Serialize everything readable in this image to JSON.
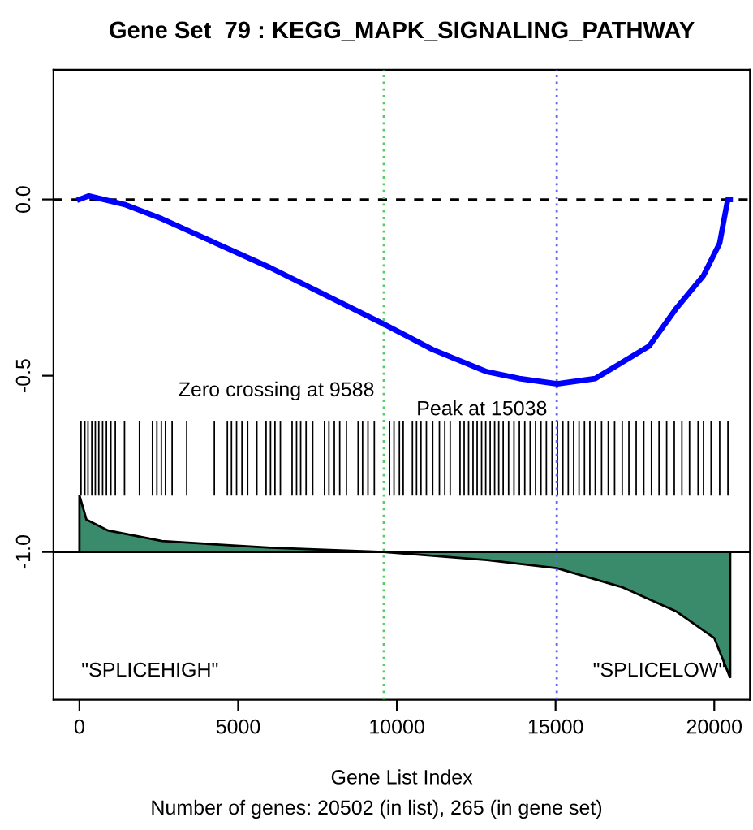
{
  "chart_data": {
    "type": "line",
    "title": "Gene Set  79 : KEGG_MAPK_SIGNALING_PATHWAY",
    "xlabel": "Gene List Index",
    "xlim": [
      -818,
      21125
    ],
    "xticks": [
      0,
      5000,
      10000,
      15000,
      20000
    ],
    "ylim": [
      -1.419,
      0.368
    ],
    "yticks": [
      {
        "value": 0,
        "label": "0.0"
      },
      {
        "value": -0.5,
        "label": "-0.5"
      },
      {
        "value": -1.0,
        "label": "-1.0"
      }
    ],
    "grid": false,
    "legend": false,
    "series": [
      {
        "color": "#0000ff",
        "x": [
          0,
          300,
          1415,
          2600,
          4300,
          6000,
          7720,
          9600,
          11130,
          12840,
          13860,
          15050,
          16250,
          17100,
          17950,
          18810,
          19660,
          20170,
          20425,
          20502
        ],
        "values": [
          0,
          0.01,
          -0.014,
          -0.055,
          -0.124,
          -0.193,
          -0.27,
          -0.354,
          -0.426,
          -0.489,
          -0.508,
          -0.523,
          -0.508,
          -0.462,
          -0.416,
          -0.308,
          -0.216,
          -0.124,
          0,
          0
        ]
      },
      {
        "type": "bar",
        "color": "#000000",
        "x": [
          50,
          170,
          270,
          390,
          500,
          610,
          730,
          850,
          990,
          1130,
          1420,
          1890,
          2300,
          2440,
          2580,
          2710,
          2920,
          3380,
          4250,
          4660,
          4790,
          4950,
          5120,
          5300,
          5590,
          5880,
          6020,
          6160,
          6330,
          6700,
          6840,
          6970,
          7140,
          7350,
          7720,
          7860,
          8030,
          8200,
          8410,
          8780,
          8920,
          9090,
          9290,
          9770,
          9910,
          10080,
          10200,
          10490,
          10620,
          10760,
          10930,
          11130,
          11340,
          11510,
          11680,
          11990,
          12120,
          12260,
          12400,
          12530,
          12670,
          12800,
          12940,
          13080,
          13210,
          13350,
          13520,
          13690,
          13860,
          14030,
          14200,
          14370,
          14540,
          14710,
          14890,
          15060,
          15230,
          15400,
          15570,
          15740,
          15910,
          16080,
          16250,
          16450,
          16660,
          16860,
          17100,
          17310,
          17540,
          17780,
          18020,
          18260,
          18500,
          18740,
          18980,
          19220,
          19490,
          19660,
          19900,
          20170,
          20430
        ],
        "base": [
          -0.84,
          -0.84,
          -0.84,
          -0.84,
          -0.84,
          -0.84,
          -0.84,
          -0.84,
          -0.84,
          -0.84,
          -0.84,
          -0.84,
          -0.84,
          -0.84,
          -0.84,
          -0.84,
          -0.84,
          -0.84,
          -0.84,
          -0.84,
          -0.84,
          -0.84,
          -0.84,
          -0.84,
          -0.84,
          -0.84,
          -0.84,
          -0.84,
          -0.84,
          -0.84,
          -0.84,
          -0.84,
          -0.84,
          -0.84,
          -0.84,
          -0.84,
          -0.84,
          -0.84,
          -0.84,
          -0.84,
          -0.84,
          -0.84,
          -0.84,
          -0.84,
          -0.84,
          -0.84,
          -0.84,
          -0.84,
          -0.84,
          -0.84,
          -0.84,
          -0.84,
          -0.84,
          -0.84,
          -0.84,
          -0.84,
          -0.84,
          -0.84,
          -0.84,
          -0.84,
          -0.84,
          -0.84,
          -0.84,
          -0.84,
          -0.84,
          -0.84,
          -0.84,
          -0.84,
          -0.84,
          -0.84,
          -0.84,
          -0.84,
          -0.84,
          -0.84,
          -0.84,
          -0.84,
          -0.84,
          -0.84,
          -0.84,
          -0.84,
          -0.84,
          -0.84,
          -0.84,
          -0.84,
          -0.84,
          -0.84,
          -0.84,
          -0.84,
          -0.84,
          -0.84,
          -0.84,
          -0.84,
          -0.84,
          -0.84,
          -0.84,
          -0.84,
          -0.84,
          -0.84,
          -0.84,
          -0.84,
          -0.84
        ],
        "values": [
          0.21,
          0.21,
          0.21,
          0.21,
          0.21,
          0.21,
          0.21,
          0.21,
          0.21,
          0.21,
          0.21,
          0.21,
          0.21,
          0.21,
          0.21,
          0.21,
          0.21,
          0.21,
          0.21,
          0.21,
          0.21,
          0.21,
          0.21,
          0.21,
          0.21,
          0.21,
          0.21,
          0.21,
          0.21,
          0.21,
          0.21,
          0.21,
          0.21,
          0.21,
          0.21,
          0.21,
          0.21,
          0.21,
          0.21,
          0.21,
          0.21,
          0.21,
          0.21,
          0.21,
          0.21,
          0.21,
          0.21,
          0.21,
          0.21,
          0.21,
          0.21,
          0.21,
          0.21,
          0.21,
          0.21,
          0.21,
          0.21,
          0.21,
          0.21,
          0.21,
          0.21,
          0.21,
          0.21,
          0.21,
          0.21,
          0.21,
          0.21,
          0.21,
          0.21,
          0.21,
          0.21,
          0.21,
          0.21,
          0.21,
          0.21,
          0.21,
          0.21,
          0.21,
          0.21,
          0.21,
          0.21,
          0.21,
          0.21,
          0.21,
          0.21,
          0.21,
          0.21,
          0.21,
          0.21,
          0.21,
          0.21,
          0.21,
          0.21,
          0.21,
          0.21,
          0.21,
          0.21,
          0.21,
          0.21,
          0.21,
          0.21
        ]
      },
      {
        "type": "area",
        "color": "#3a8a6c",
        "x": [
          0,
          0,
          220,
          900,
          2600,
          6020,
          9588,
          12840,
          15040,
          17100,
          18810,
          20000,
          20502,
          20502
        ],
        "values": [
          -1.0,
          -0.839,
          -0.908,
          -0.939,
          -0.969,
          -0.988,
          -1.0,
          -1.023,
          -1.046,
          -1.1,
          -1.169,
          -1.244,
          -1.357,
          -1.0
        ]
      }
    ],
    "ref_lines": [
      {
        "axis": "y",
        "value": 0,
        "color": "#000000",
        "line_style": "dashed"
      },
      {
        "axis": "y",
        "value": -1.0,
        "color": "#000000",
        "line_style": "solid"
      },
      {
        "axis": "x",
        "value": 9588,
        "color": "#55cc66",
        "line_style": "dotted"
      },
      {
        "axis": "x",
        "value": 15038,
        "color": "#6666ee",
        "line_style": "dotted"
      }
    ],
    "annotations": [
      "Zero crossing at 9588",
      "Peak at 15038",
      "\"SPLICEHIGH\"",
      "\"SPLICELOW\"",
      "Number of genes: 20502 (in list), 265 (in gene set)"
    ]
  }
}
